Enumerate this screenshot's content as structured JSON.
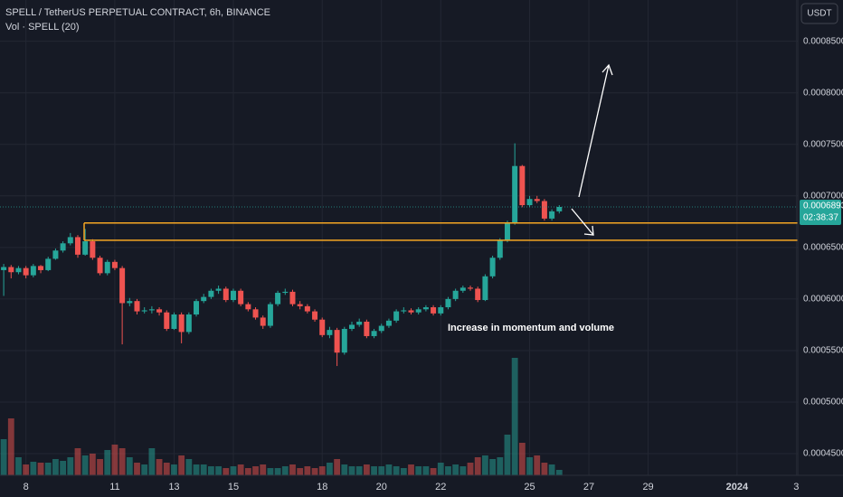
{
  "chart_data": {
    "type": "candlestick",
    "title": "SPELL / TetherUS PERPETUAL CONTRACT, 6h, BINANCE",
    "volume_title": "Vol · SPELL (20)",
    "currency": "USDT",
    "annotation": "Increase in momentum and volume",
    "last_price": 0.0006893,
    "countdown": "02:38:37",
    "up_color": "#26a69a",
    "down_color": "#ef5350",
    "level_color": "#f5a623",
    "grid": true,
    "levels": [
      0.0006737,
      0.000657
    ],
    "xlim": [
      -0.5,
      107.2
    ],
    "xticks": [
      {
        "value": 3,
        "label": "8"
      },
      {
        "value": 15,
        "label": "11"
      },
      {
        "value": 23,
        "label": "13"
      },
      {
        "value": 31,
        "label": "15"
      },
      {
        "value": 43,
        "label": "18"
      },
      {
        "value": 51,
        "label": "20"
      },
      {
        "value": 59,
        "label": "22"
      },
      {
        "value": 71,
        "label": "25"
      },
      {
        "value": 79,
        "label": "27"
      },
      {
        "value": 87,
        "label": "29"
      },
      {
        "value": 99,
        "label": "2024"
      },
      {
        "value": 107,
        "label": "3"
      }
    ],
    "ylim": [
      0.000429,
      0.00089
    ],
    "yticks": [
      {
        "value": 0.00045,
        "label": "0.0004500"
      },
      {
        "value": 0.0005,
        "label": "0.0005000"
      },
      {
        "value": 0.00055,
        "label": "0.0005500"
      },
      {
        "value": 0.0006,
        "label": "0.0006000"
      },
      {
        "value": 0.00065,
        "label": "0.0006500"
      },
      {
        "value": 0.0007,
        "label": "0.0007000"
      },
      {
        "value": 0.00075,
        "label": "0.0007500"
      },
      {
        "value": 0.0008,
        "label": "0.0008000"
      },
      {
        "value": 0.00085,
        "label": "0.0008500"
      }
    ],
    "open": [
      0.000628,
      0.000631,
      0.000626,
      0.00063,
      0.000623,
      0.000632,
      0.000628,
      0.000639,
      0.000647,
      0.000654,
      0.00066,
      0.000643,
      0.000656,
      0.00064,
      0.000625,
      0.000636,
      0.00063,
      0.000596,
      0.000598,
      0.000588,
      0.000589,
      0.00059,
      0.000587,
      0.000571,
      0.000585,
      0.000568,
      0.000585,
      0.000598,
      0.000602,
      0.000608,
      0.00061,
      0.000599,
      0.000608,
      0.000595,
      0.00059,
      0.000582,
      0.000574,
      0.000595,
      0.000606,
      0.000607,
      0.000595,
      0.000593,
      0.000588,
      0.00058,
      0.000565,
      0.00057,
      0.000548,
      0.000571,
      0.000575,
      0.000578,
      0.000564,
      0.000569,
      0.000574,
      0.000579,
      0.000588,
      0.000589,
      0.000587,
      0.00059,
      0.000592,
      0.000586,
      0.000592,
      0.0006,
      0.000608,
      0.000611,
      0.00061,
      0.000599,
      0.000622,
      0.00064,
      0.000657,
      0.000674,
      0.000729,
      0.000691,
      0.000697,
      0.000695,
      0.000678,
      0.000685
    ],
    "high": [
      0.000634,
      0.000633,
      0.000632,
      0.000632,
      0.000634,
      0.000633,
      0.000641,
      0.000649,
      0.000656,
      0.000664,
      0.000662,
      0.000668,
      0.000658,
      0.000642,
      0.000638,
      0.000638,
      0.000632,
      0.000601,
      0.0006,
      0.000592,
      0.000593,
      0.000592,
      0.000589,
      0.000587,
      0.000587,
      0.000587,
      0.0006,
      0.000605,
      0.00061,
      0.000613,
      0.000612,
      0.00061,
      0.00061,
      0.000597,
      0.000592,
      0.000584,
      0.000597,
      0.000608,
      0.00061,
      0.000609,
      0.000598,
      0.000595,
      0.00059,
      0.000582,
      0.000573,
      0.000572,
      0.000573,
      0.000578,
      0.000581,
      0.00058,
      0.000571,
      0.000576,
      0.000581,
      0.00059,
      0.000592,
      0.000591,
      0.000592,
      0.000594,
      0.000594,
      0.000594,
      0.000602,
      0.00061,
      0.000613,
      0.000613,
      0.000612,
      0.000624,
      0.000642,
      0.000659,
      0.000676,
      0.000751,
      0.00073,
      0.0007,
      0.0007,
      0.000697,
      0.000687,
      0.000691
    ],
    "low": [
      0.000603,
      0.00062,
      0.000624,
      0.00062,
      0.000621,
      0.000625,
      0.000627,
      0.000638,
      0.000645,
      0.000652,
      0.00064,
      0.000642,
      0.000638,
      0.000623,
      0.000623,
      0.000628,
      0.000556,
      0.000593,
      0.000585,
      0.000586,
      0.000586,
      0.000584,
      0.000569,
      0.00057,
      0.000557,
      0.000566,
      0.000583,
      0.000596,
      0.0006,
      0.000605,
      0.000597,
      0.000597,
      0.000593,
      0.000588,
      0.00058,
      0.000571,
      0.000572,
      0.000593,
      0.000604,
      0.000593,
      0.00059,
      0.000586,
      0.000578,
      0.000563,
      0.000562,
      0.000535,
      0.000546,
      0.000569,
      0.000573,
      0.000562,
      0.000562,
      0.000567,
      0.000572,
      0.000577,
      0.000586,
      0.000585,
      0.000585,
      0.000588,
      0.000584,
      0.000584,
      0.00059,
      0.000598,
      0.000606,
      0.000608,
      0.000597,
      0.000598,
      0.00062,
      0.000638,
      0.000655,
      0.000672,
      0.000689,
      0.000689,
      0.000693,
      0.000676,
      0.000676,
      0.000683
    ],
    "close": [
      0.000631,
      0.000626,
      0.00063,
      0.000623,
      0.000632,
      0.000628,
      0.000639,
      0.000647,
      0.000654,
      0.00066,
      0.000643,
      0.000656,
      0.00064,
      0.000625,
      0.000636,
      0.00063,
      0.000596,
      0.000598,
      0.000588,
      0.000589,
      0.00059,
      0.000587,
      0.000571,
      0.000585,
      0.000568,
      0.000585,
      0.000598,
      0.000602,
      0.000608,
      0.00061,
      0.000599,
      0.000608,
      0.000595,
      0.00059,
      0.000582,
      0.000574,
      0.000595,
      0.000606,
      0.000607,
      0.000595,
      0.000593,
      0.000588,
      0.00058,
      0.000565,
      0.00057,
      0.000548,
      0.000571,
      0.000575,
      0.000578,
      0.000564,
      0.000569,
      0.000574,
      0.000579,
      0.000588,
      0.000589,
      0.000587,
      0.00059,
      0.000592,
      0.000586,
      0.000592,
      0.0006,
      0.000608,
      0.000611,
      0.00061,
      0.000599,
      0.000622,
      0.00064,
      0.000657,
      0.000674,
      0.000729,
      0.000691,
      0.000697,
      0.000695,
      0.000678,
      0.000685,
      0.0006893
    ],
    "volume": [
      40,
      63,
      20,
      12,
      15,
      14,
      14,
      18,
      16,
      20,
      30,
      22,
      24,
      18,
      28,
      34,
      30,
      20,
      14,
      12,
      30,
      18,
      14,
      12,
      22,
      18,
      12,
      12,
      10,
      10,
      8,
      10,
      12,
      8,
      10,
      12,
      8,
      8,
      10,
      12,
      8,
      10,
      8,
      10,
      14,
      18,
      12,
      10,
      10,
      12,
      10,
      10,
      12,
      10,
      8,
      12,
      10,
      10,
      8,
      14,
      10,
      12,
      10,
      14,
      20,
      22,
      18,
      20,
      45,
      130,
      36,
      20,
      22,
      14,
      12,
      6
    ]
  }
}
